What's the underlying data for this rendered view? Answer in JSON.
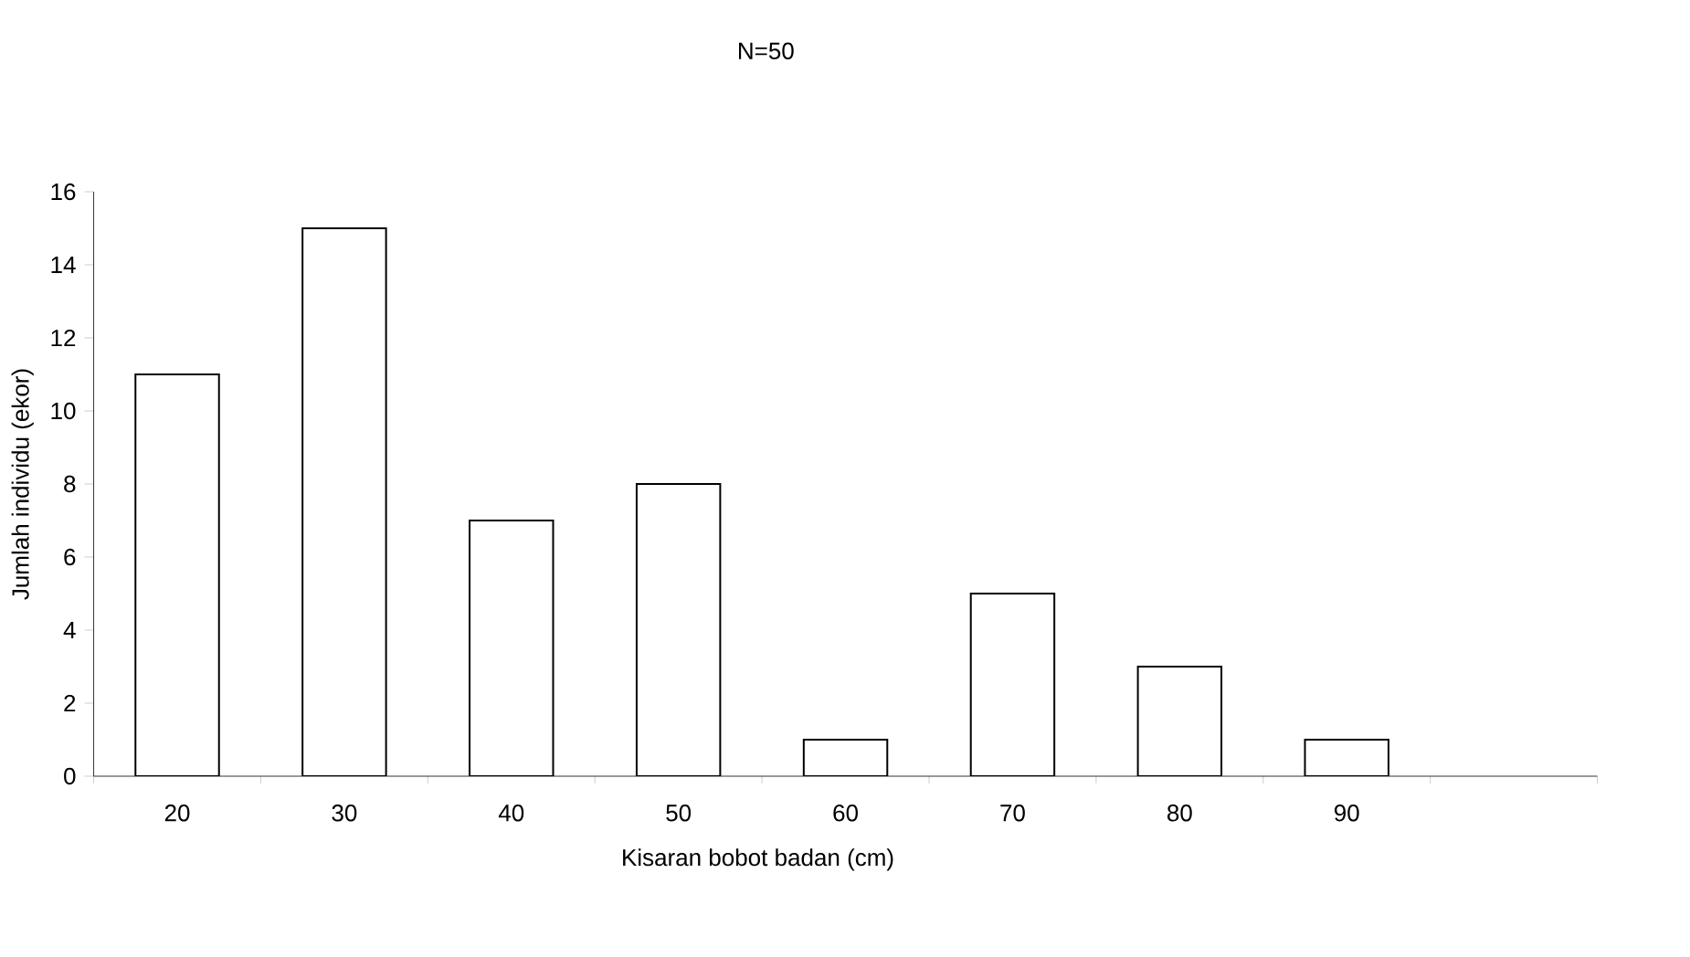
{
  "chart_data": {
    "type": "bar",
    "title": "N=50",
    "xlabel": "Kisaran bobot badan (cm)",
    "ylabel": "Jumlah individu (ekor)",
    "categories": [
      "20",
      "30",
      "40",
      "50",
      "60",
      "70",
      "80",
      "90",
      null
    ],
    "values": [
      11,
      15,
      7,
      8,
      1,
      5,
      3,
      1,
      null
    ],
    "color": "#ffffff",
    "ylim": [
      0,
      16
    ],
    "yticks": [
      0,
      2,
      4,
      6,
      8,
      10,
      12,
      14,
      16
    ]
  }
}
